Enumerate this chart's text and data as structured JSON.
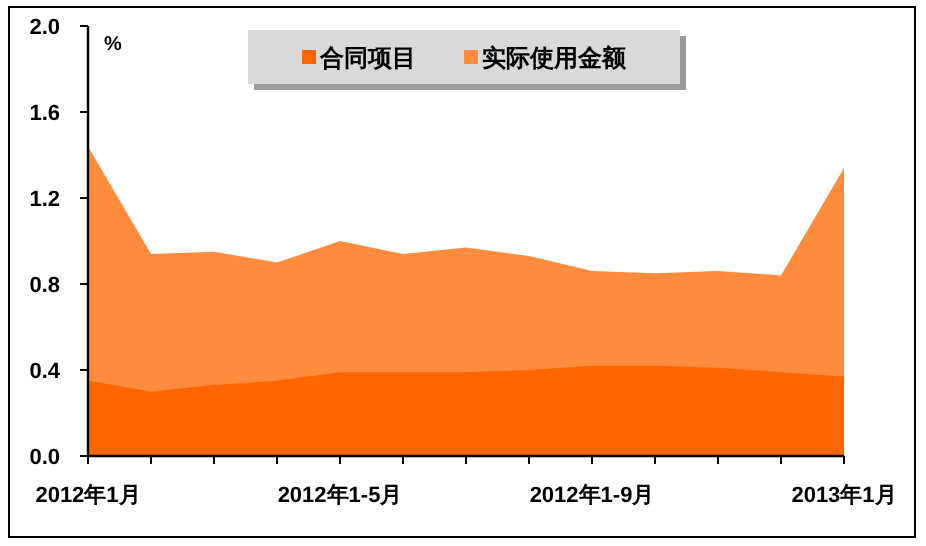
{
  "chart_data": {
    "type": "area",
    "ylabel": "%",
    "categories": [
      "2012年1月",
      null,
      null,
      null,
      "2012年1-5月",
      null,
      null,
      null,
      "2012年1-9月",
      null,
      null,
      null,
      "2013年1月"
    ],
    "series": [
      {
        "name": "合同项目",
        "color": "#ff6600",
        "values": [
          0.35,
          0.3,
          0.33,
          0.35,
          0.39,
          0.39,
          0.39,
          0.4,
          0.42,
          0.42,
          0.41,
          0.39,
          0.37
        ]
      },
      {
        "name": "实际使用金额",
        "color": "#ff8c3c",
        "values": [
          1.44,
          0.94,
          0.95,
          0.9,
          1.0,
          0.94,
          0.97,
          0.93,
          0.86,
          0.85,
          0.86,
          0.84,
          1.34
        ]
      }
    ],
    "ylim": [
      0,
      2.0
    ],
    "yticks": [
      {
        "value": 0,
        "label": "0.0"
      },
      {
        "value": 0.4,
        "label": "0.4"
      },
      {
        "value": 0.8,
        "label": "0.8"
      },
      {
        "value": 1.2,
        "label": "1.2"
      },
      {
        "value": 1.6,
        "label": "1.6"
      },
      {
        "value": 2.0,
        "label": "2.0"
      }
    ],
    "legend": "top"
  }
}
